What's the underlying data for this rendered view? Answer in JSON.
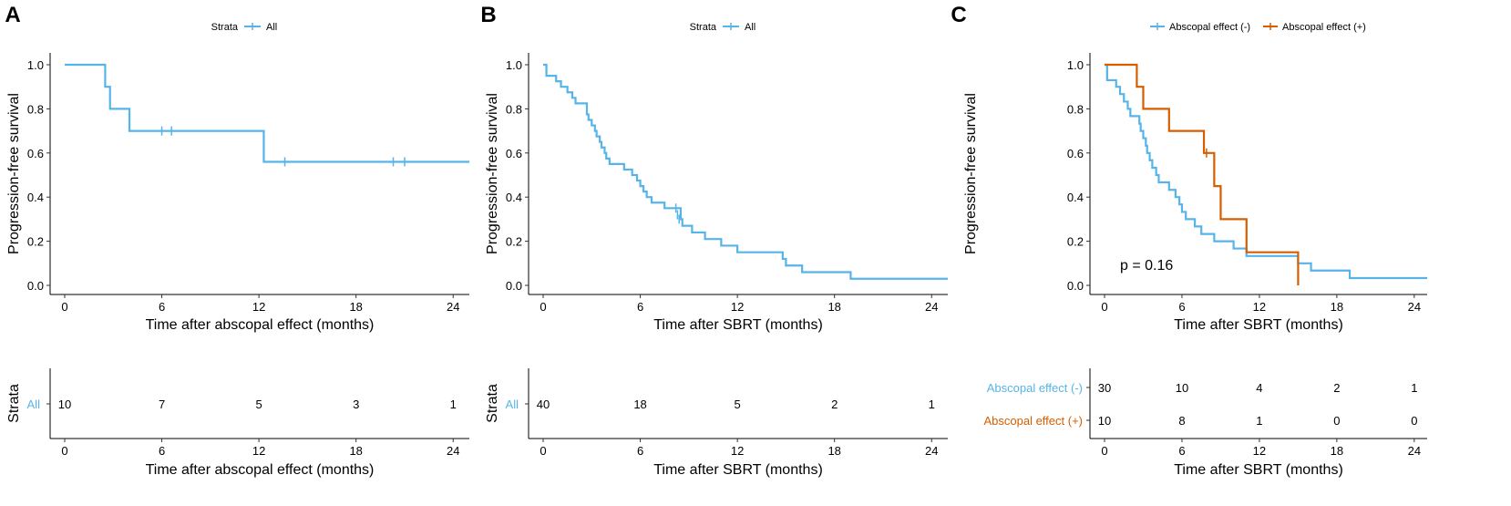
{
  "colors": {
    "all": "#56B4E9",
    "neg": "#56B4E9",
    "pos": "#D55E00",
    "axis": "#000000"
  },
  "chart_data": [
    {
      "panel_label": "A",
      "type": "line",
      "legend": {
        "title": "Strata",
        "entries": [
          {
            "label": "All",
            "color": "#56B4E9"
          }
        ]
      },
      "ylabel": "Progression-free survival",
      "xlabel": "Time after abscopal effect (months)",
      "xlim": [
        0,
        25
      ],
      "ylim": [
        0,
        1
      ],
      "xticks": [
        "0",
        "6",
        "12",
        "18",
        "24"
      ],
      "yticks": [
        "0.0",
        "0.2",
        "0.4",
        "0.6",
        "0.8",
        "1.0"
      ],
      "series": [
        {
          "name": "All",
          "color": "#56B4E9",
          "steps": [
            [
              0,
              1.0
            ],
            [
              2.5,
              0.9
            ],
            [
              2.8,
              0.8
            ],
            [
              4.0,
              0.7
            ],
            [
              12.3,
              0.56
            ]
          ],
          "end": 25,
          "censors": [
            [
              6.0,
              0.7
            ],
            [
              6.6,
              0.7
            ],
            [
              13.6,
              0.56
            ],
            [
              20.3,
              0.56
            ],
            [
              21.0,
              0.56
            ]
          ]
        }
      ],
      "risk_table": {
        "ylabel": "Strata",
        "xlabel": "Time after abscopal effect (months)",
        "rows": [
          {
            "label": "All",
            "color": "#56B4E9",
            "values": [
              "10",
              "7",
              "5",
              "3",
              "1"
            ]
          }
        ]
      }
    },
    {
      "panel_label": "B",
      "type": "line",
      "legend": {
        "title": "Strata",
        "entries": [
          {
            "label": "All",
            "color": "#56B4E9"
          }
        ]
      },
      "ylabel": "Progression-free survival",
      "xlabel": "Time after SBRT (months)",
      "xlim": [
        0,
        25
      ],
      "ylim": [
        0,
        1
      ],
      "xticks": [
        "0",
        "6",
        "12",
        "18",
        "24"
      ],
      "yticks": [
        "0.0",
        "0.2",
        "0.4",
        "0.6",
        "0.8",
        "1.0"
      ],
      "series": [
        {
          "name": "All",
          "color": "#56B4E9",
          "steps": [
            [
              0,
              1.0
            ],
            [
              0.2,
              0.95
            ],
            [
              0.8,
              0.925
            ],
            [
              1.1,
              0.9
            ],
            [
              1.5,
              0.875
            ],
            [
              1.8,
              0.85
            ],
            [
              2.0,
              0.825
            ],
            [
              2.7,
              0.775
            ],
            [
              2.8,
              0.75
            ],
            [
              3.0,
              0.725
            ],
            [
              3.2,
              0.7
            ],
            [
              3.3,
              0.675
            ],
            [
              3.5,
              0.65
            ],
            [
              3.6,
              0.625
            ],
            [
              3.8,
              0.6
            ],
            [
              3.9,
              0.575
            ],
            [
              4.1,
              0.55
            ],
            [
              5.0,
              0.525
            ],
            [
              5.5,
              0.5
            ],
            [
              5.8,
              0.475
            ],
            [
              6.0,
              0.45
            ],
            [
              6.2,
              0.425
            ],
            [
              6.4,
              0.4
            ],
            [
              6.7,
              0.375
            ],
            [
              7.5,
              0.35
            ],
            [
              8.5,
              0.3
            ],
            [
              8.6,
              0.27
            ],
            [
              9.2,
              0.24
            ],
            [
              10.0,
              0.21
            ],
            [
              11.0,
              0.18
            ],
            [
              12.0,
              0.15
            ],
            [
              14.8,
              0.12
            ],
            [
              15.0,
              0.09
            ],
            [
              16.0,
              0.06
            ],
            [
              19.0,
              0.03
            ]
          ],
          "end": 25,
          "censors": [
            [
              8.2,
              0.35
            ],
            [
              8.3,
              0.32
            ],
            [
              8.4,
              0.3
            ]
          ]
        }
      ],
      "risk_table": {
        "ylabel": "Strata",
        "xlabel": "Time after SBRT (months)",
        "rows": [
          {
            "label": "All",
            "color": "#56B4E9",
            "values": [
              "40",
              "18",
              "5",
              "2",
              "1"
            ]
          }
        ]
      }
    },
    {
      "panel_label": "C",
      "type": "line",
      "legend": {
        "title": "",
        "entries": [
          {
            "label": "Abscopal effect (-)",
            "color": "#56B4E9"
          },
          {
            "label": "Abscopal effect (+)",
            "color": "#D55E00"
          }
        ]
      },
      "ylabel": "Progression-free survival",
      "xlabel": "Time after SBRT (months)",
      "xlim": [
        0,
        25
      ],
      "ylim": [
        0,
        1
      ],
      "xticks": [
        "0",
        "6",
        "12",
        "18",
        "24"
      ],
      "yticks": [
        "0.0",
        "0.2",
        "0.4",
        "0.6",
        "0.8",
        "1.0"
      ],
      "annotation": {
        "text": "p = 0.16",
        "x": 0.2,
        "y": 0.09
      },
      "series": [
        {
          "name": "Abscopal effect (-)",
          "color": "#56B4E9",
          "steps": [
            [
              0,
              1.0
            ],
            [
              0.2,
              0.93
            ],
            [
              0.9,
              0.9
            ],
            [
              1.2,
              0.867
            ],
            [
              1.5,
              0.833
            ],
            [
              1.8,
              0.8
            ],
            [
              2.0,
              0.767
            ],
            [
              2.7,
              0.733
            ],
            [
              2.8,
              0.7
            ],
            [
              3.0,
              0.667
            ],
            [
              3.2,
              0.633
            ],
            [
              3.3,
              0.6
            ],
            [
              3.5,
              0.567
            ],
            [
              3.7,
              0.533
            ],
            [
              4.0,
              0.5
            ],
            [
              4.2,
              0.467
            ],
            [
              5.0,
              0.433
            ],
            [
              5.5,
              0.4
            ],
            [
              5.8,
              0.367
            ],
            [
              6.0,
              0.333
            ],
            [
              6.3,
              0.3
            ],
            [
              7.0,
              0.267
            ],
            [
              7.5,
              0.233
            ],
            [
              8.5,
              0.2
            ],
            [
              10.0,
              0.167
            ],
            [
              11.0,
              0.133
            ],
            [
              13.0,
              0.133
            ],
            [
              15.0,
              0.1
            ],
            [
              16.0,
              0.067
            ],
            [
              19.0,
              0.033
            ]
          ],
          "end": 25,
          "censors": []
        },
        {
          "name": "Abscopal effect (+)",
          "color": "#D55E00",
          "steps": [
            [
              0,
              1.0
            ],
            [
              2.5,
              0.9
            ],
            [
              3.0,
              0.8
            ],
            [
              5.0,
              0.7
            ],
            [
              7.7,
              0.6
            ],
            [
              8.5,
              0.45
            ],
            [
              9.0,
              0.3
            ],
            [
              11.0,
              0.15
            ],
            [
              15.0,
              0.0
            ]
          ],
          "end": 15.0,
          "censors": [
            [
              7.9,
              0.6
            ]
          ]
        }
      ],
      "risk_table": {
        "ylabel": "",
        "xlabel": "Time after SBRT (months)",
        "rows": [
          {
            "label": "Abscopal effect (-)",
            "color": "#56B4E9",
            "values": [
              "30",
              "10",
              "4",
              "2",
              "1"
            ]
          },
          {
            "label": "Abscopal effect (+)",
            "color": "#D55E00",
            "values": [
              "10",
              "8",
              "1",
              "0",
              "0"
            ]
          }
        ]
      }
    }
  ]
}
